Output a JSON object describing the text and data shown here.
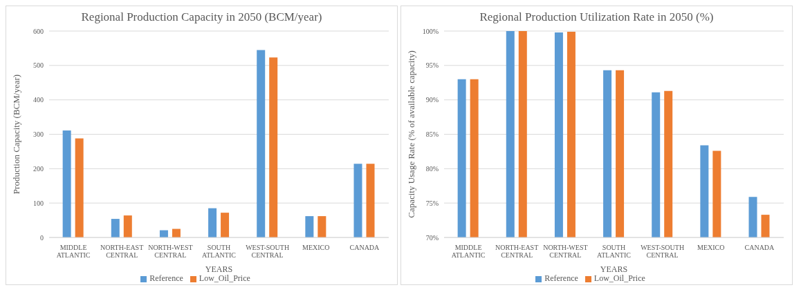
{
  "chart_data": [
    {
      "type": "bar",
      "title": "Regional Production Capacity in 2050 (BCM/year)",
      "xlabel": "YEARS",
      "ylabel": "Production Capacity (BCM/year)",
      "categories": [
        "MIDDLE ATLANTIC",
        "NORTH-EAST CENTRAL",
        "NORTH-WEST CENTRAL",
        "SOUTH ATLANTIC",
        "WEST-SOUTH CENTRAL",
        "MEXICO",
        "CANADA"
      ],
      "series": [
        {
          "name": "Reference",
          "color": "#5b9bd5",
          "values": [
            311,
            54,
            21,
            85,
            545,
            62,
            214
          ]
        },
        {
          "name": "Low_Oil_Price",
          "color": "#ed7d31",
          "values": [
            288,
            64,
            25,
            72,
            523,
            62,
            214
          ]
        }
      ],
      "ylim": [
        0,
        600
      ],
      "yticks": [
        0,
        100,
        200,
        300,
        400,
        500,
        600
      ],
      "grid": "y",
      "legend": "bottom"
    },
    {
      "type": "bar",
      "title": "Regional Production Utilization Rate in 2050 (%)",
      "xlabel": "YEARS",
      "ylabel": "Capacity Usage Rate (% of  available capacity)",
      "categories": [
        "MIDDLE ATLANTIC",
        "NORTH-EAST CENTRAL",
        "NORTH-WEST CENTRAL",
        "SOUTH ATLANTIC",
        "WEST-SOUTH CENTRAL",
        "MEXICO",
        "CANADA"
      ],
      "series": [
        {
          "name": "Reference",
          "color": "#5b9bd5",
          "values": [
            93.0,
            100,
            99.8,
            94.3,
            91.1,
            83.4,
            75.9
          ]
        },
        {
          "name": "Low_Oil_Price",
          "color": "#ed7d31",
          "values": [
            93.0,
            100,
            99.9,
            94.3,
            91.3,
            82.6,
            73.3
          ]
        }
      ],
      "ylim": [
        70,
        100
      ],
      "yticks": [
        {
          "value": 70,
          "label": "70%"
        },
        {
          "value": 75,
          "label": "75%"
        },
        {
          "value": 80,
          "label": "80%"
        },
        {
          "value": 85,
          "label": "85%"
        },
        {
          "value": 90,
          "label": "90%"
        },
        {
          "value": 95,
          "label": "95%"
        },
        {
          "value": 100,
          "label": "100%"
        }
      ],
      "grid": "y",
      "legend": "bottom"
    }
  ]
}
